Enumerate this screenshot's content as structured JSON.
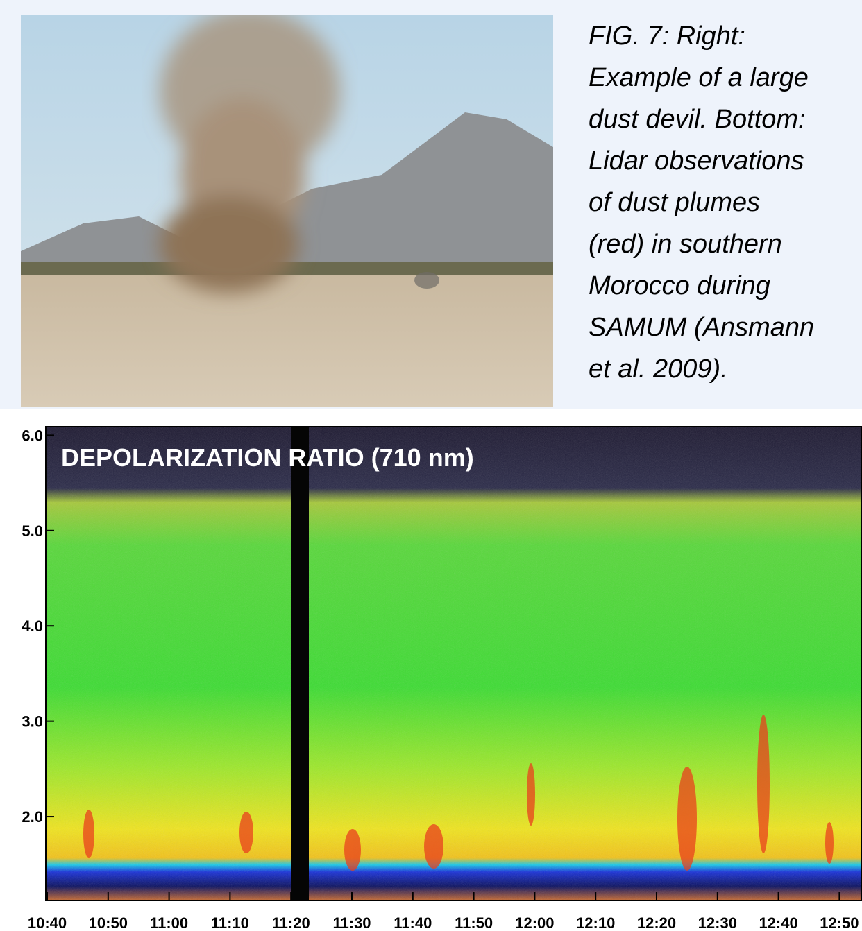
{
  "caption": {
    "lines": [
      "FIG. 7: Right:",
      "Example of a large",
      "dust devil. Bottom:",
      "Lidar observations",
      "of dust plumes",
      "(red) in southern",
      "Morocco during",
      "SAMUM (Ansmann",
      "et al. 2009)."
    ]
  },
  "chart_data": {
    "type": "heatmap",
    "title": "DEPOLARIZATION RATIO (710 nm)",
    "ylim": [
      1.12,
      6.09
    ],
    "yticks": [
      {
        "value": 2,
        "label": "2.0"
      },
      {
        "value": 3,
        "label": "3.0"
      },
      {
        "value": 4,
        "label": "4.0"
      },
      {
        "value": 5,
        "label": "5.0"
      },
      {
        "value": 6,
        "label": "6.0"
      }
    ],
    "xticks": [
      "10:40",
      "10:50",
      "11:00",
      "11:10",
      "11:20",
      "11:30",
      "11:40",
      "11:50",
      "12:00",
      "12:10",
      "12:20",
      "12:30",
      "12:40",
      "12:50"
    ]
  }
}
